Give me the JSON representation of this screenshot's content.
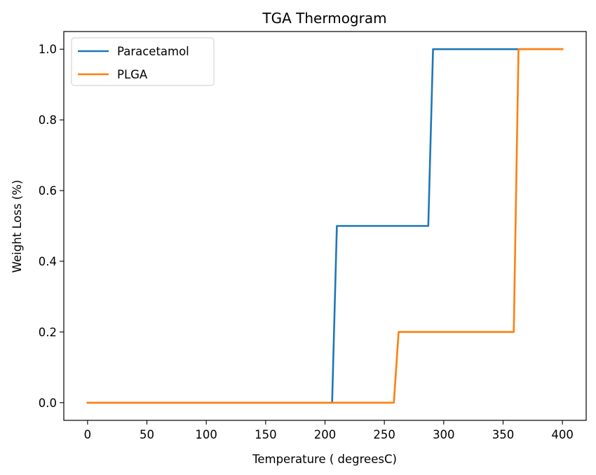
{
  "chart_data": {
    "type": "line",
    "title": "TGA Thermogram",
    "xlabel": "Temperature ( degreesC)",
    "ylabel": "Weight Loss (%)",
    "xlim": [
      -20,
      420
    ],
    "ylim": [
      -0.05,
      1.05
    ],
    "xticks": [
      0,
      50,
      100,
      150,
      200,
      250,
      300,
      350,
      400
    ],
    "yticks": [
      0.0,
      0.2,
      0.4,
      0.6,
      0.8,
      1.0
    ],
    "xtick_labels": [
      "0",
      "50",
      "100",
      "150",
      "200",
      "250",
      "300",
      "350",
      "400"
    ],
    "ytick_labels": [
      "0.0",
      "0.2",
      "0.4",
      "0.6",
      "0.8",
      "1.0"
    ],
    "grid": false,
    "legend_position": "top-left",
    "series": [
      {
        "name": "Paracetamol",
        "color": "#1f77b4",
        "x": [
          0,
          206,
          210,
          287,
          291,
          400
        ],
        "y": [
          0,
          0,
          0.5,
          0.5,
          1.0,
          1.0
        ]
      },
      {
        "name": "PLGA",
        "color": "#ff7f0e",
        "x": [
          0,
          258,
          262,
          359,
          363,
          400
        ],
        "y": [
          0,
          0,
          0.2,
          0.2,
          1.0,
          1.0
        ]
      }
    ]
  }
}
